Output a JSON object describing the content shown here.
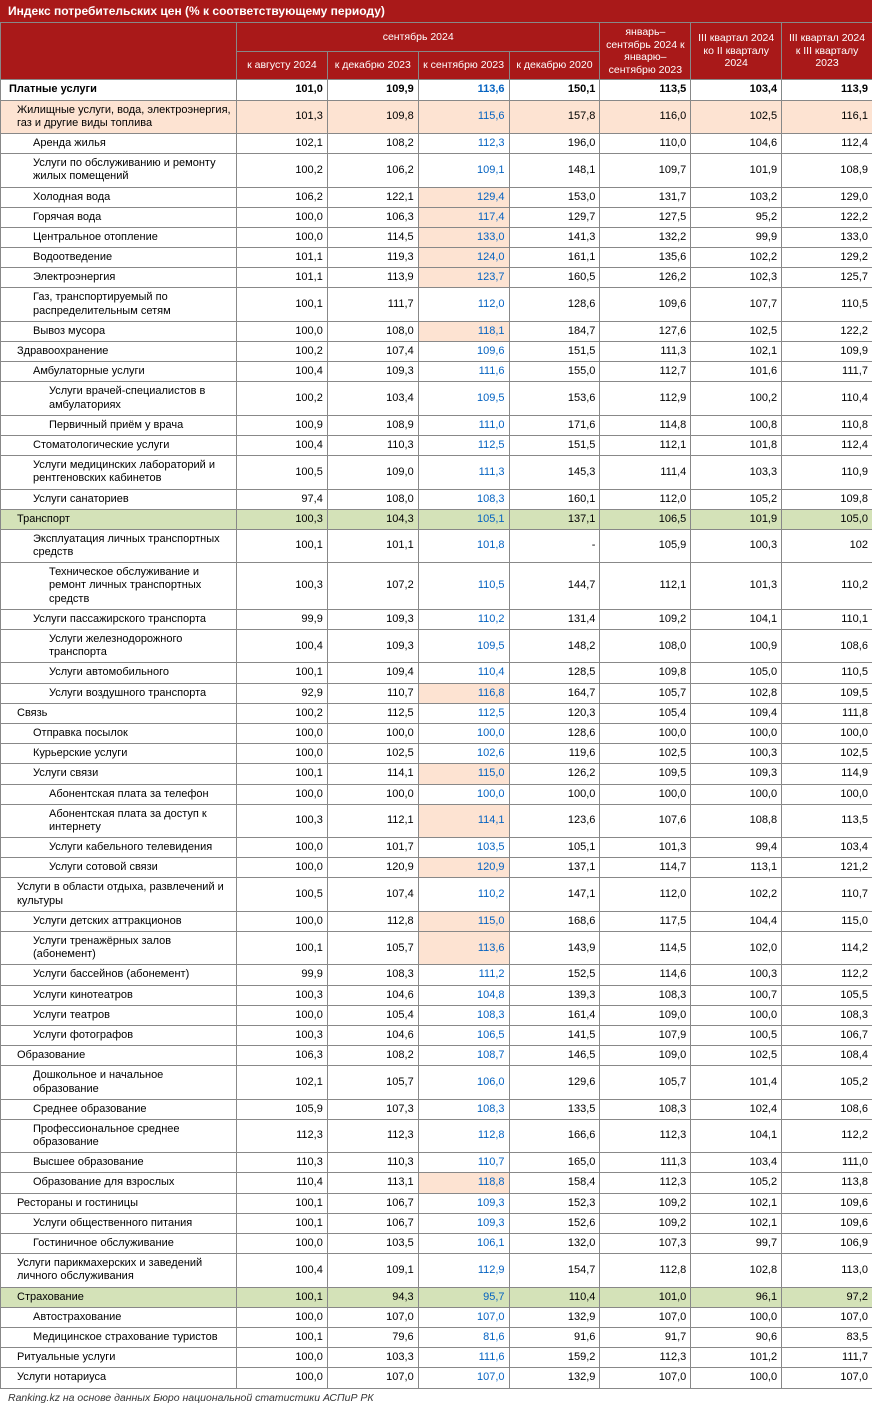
{
  "title": "Индекс потребительских цен (% к соответствующему периоду)",
  "header_top": {
    "sept2024": "сентябрь 2024",
    "jan_sept": "январь–сентябрь 2024 к январю–сентябрю 2023",
    "q3_q2": "III квартал 2024 ко II кварталу 2024",
    "q3_q3": "III квартал 2024 к III кварталу 2023"
  },
  "header_sub": {
    "aug2024": "к августу 2024",
    "dec2023": "к декабрю 2023",
    "sept2023": "к сентябрю 2023",
    "dec2020": "к декабрю 2020"
  },
  "colors": {
    "header_bg": "#a91919",
    "row_plain": "#ffffff",
    "row_orange": "#fde3d2",
    "row_orange_light": "#fdf1e8",
    "row_green": "#d4e2b8",
    "cell_orange": "#fde3d2",
    "link_blue": "#0563c1"
  },
  "footer": "Ranking.kz на основе данных Бюро национальной статистики АСПиР РК",
  "rows": [
    {
      "label": "Платные услуги",
      "indent": 0,
      "bold": true,
      "bg": "plain",
      "v": [
        "101,0",
        "109,9",
        "113,6",
        "150,1",
        "113,5",
        "103,4",
        "113,9"
      ],
      "c3blue": true,
      "c3hl": false
    },
    {
      "label": "Жилищные услуги, вода, электроэнергия, газ и другие виды топлива",
      "indent": 1,
      "bg": "orange",
      "v": [
        "101,3",
        "109,8",
        "115,6",
        "157,8",
        "116,0",
        "102,5",
        "116,1"
      ],
      "c3blue": true,
      "c3hl": false
    },
    {
      "label": "Аренда жилья",
      "indent": 2,
      "bg": "plain",
      "v": [
        "102,1",
        "108,2",
        "112,3",
        "196,0",
        "110,0",
        "104,6",
        "112,4"
      ],
      "c3blue": true,
      "c3hl": false
    },
    {
      "label": "Услуги по обслуживанию и ремонту жилых помещений",
      "indent": 2,
      "bg": "plain",
      "v": [
        "100,2",
        "106,2",
        "109,1",
        "148,1",
        "109,7",
        "101,9",
        "108,9"
      ],
      "c3blue": true,
      "c3hl": false
    },
    {
      "label": "Холодная вода",
      "indent": 2,
      "bg": "plain",
      "v": [
        "106,2",
        "122,1",
        "129,4",
        "153,0",
        "131,7",
        "103,2",
        "129,0"
      ],
      "c3blue": true,
      "c3hl": true
    },
    {
      "label": "Горячая вода",
      "indent": 2,
      "bg": "plain",
      "v": [
        "100,0",
        "106,3",
        "117,4",
        "129,7",
        "127,5",
        "95,2",
        "122,2"
      ],
      "c3blue": true,
      "c3hl": true
    },
    {
      "label": "Центральное отопление",
      "indent": 2,
      "bg": "plain",
      "v": [
        "100,0",
        "114,5",
        "133,0",
        "141,3",
        "132,2",
        "99,9",
        "133,0"
      ],
      "c3blue": true,
      "c3hl": true
    },
    {
      "label": "Водоотведение",
      "indent": 2,
      "bg": "plain",
      "v": [
        "101,1",
        "119,3",
        "124,0",
        "161,1",
        "135,6",
        "102,2",
        "129,2"
      ],
      "c3blue": true,
      "c3hl": true
    },
    {
      "label": "Электроэнергия",
      "indent": 2,
      "bg": "plain",
      "v": [
        "101,1",
        "113,9",
        "123,7",
        "160,5",
        "126,2",
        "102,3",
        "125,7"
      ],
      "c3blue": true,
      "c3hl": true
    },
    {
      "label": "Газ, транспортируемый по распределительным сетям",
      "indent": 2,
      "bg": "plain",
      "v": [
        "100,1",
        "111,7",
        "112,0",
        "128,6",
        "109,6",
        "107,7",
        "110,5"
      ],
      "c3blue": true,
      "c3hl": false
    },
    {
      "label": "Вывоз мусора",
      "indent": 2,
      "bg": "plain",
      "v": [
        "100,0",
        "108,0",
        "118,1",
        "184,7",
        "127,6",
        "102,5",
        "122,2"
      ],
      "c3blue": true,
      "c3hl": true
    },
    {
      "label": "Здравоохранение",
      "indent": 1,
      "bg": "plain",
      "v": [
        "100,2",
        "107,4",
        "109,6",
        "151,5",
        "111,3",
        "102,1",
        "109,9"
      ],
      "c3blue": true,
      "c3hl": false
    },
    {
      "label": "Амбулаторные услуги",
      "indent": 2,
      "bg": "plain",
      "v": [
        "100,4",
        "109,3",
        "111,6",
        "155,0",
        "112,7",
        "101,6",
        "111,7"
      ],
      "c3blue": true,
      "c3hl": false
    },
    {
      "label": "Услуги врачей-специалистов в амбулаториях",
      "indent": 3,
      "bg": "plain",
      "v": [
        "100,2",
        "103,4",
        "109,5",
        "153,6",
        "112,9",
        "100,2",
        "110,4"
      ],
      "c3blue": true,
      "c3hl": false
    },
    {
      "label": "Первичный приём у врача",
      "indent": 3,
      "bg": "plain",
      "v": [
        "100,9",
        "108,9",
        "111,0",
        "171,6",
        "114,8",
        "100,8",
        "110,8"
      ],
      "c3blue": true,
      "c3hl": false
    },
    {
      "label": "Стоматологические услуги",
      "indent": 2,
      "bg": "plain",
      "v": [
        "100,4",
        "110,3",
        "112,5",
        "151,5",
        "112,1",
        "101,8",
        "112,4"
      ],
      "c3blue": true,
      "c3hl": false
    },
    {
      "label": "Услуги медицинских лабораторий и рентгеновских кабинетов",
      "indent": 2,
      "bg": "plain",
      "v": [
        "100,5",
        "109,0",
        "111,3",
        "145,3",
        "111,4",
        "103,3",
        "110,9"
      ],
      "c3blue": true,
      "c3hl": false
    },
    {
      "label": "Услуги санаториев",
      "indent": 2,
      "bg": "plain",
      "v": [
        "97,4",
        "108,0",
        "108,3",
        "160,1",
        "112,0",
        "105,2",
        "109,8"
      ],
      "c3blue": true,
      "c3hl": false
    },
    {
      "label": "Транспорт",
      "indent": 1,
      "bg": "green",
      "v": [
        "100,3",
        "104,3",
        "105,1",
        "137,1",
        "106,5",
        "101,9",
        "105,0"
      ],
      "c3blue": true,
      "c3hl": false
    },
    {
      "label": "Эксплуатация личных транспортных средств",
      "indent": 2,
      "bg": "plain",
      "v": [
        "100,1",
        "101,1",
        "101,8",
        "-",
        "105,9",
        "100,3",
        "102"
      ],
      "c3blue": true,
      "c3hl": false
    },
    {
      "label": "Техническое обслуживание и ремонт личных транспортных средств",
      "indent": 3,
      "bg": "plain",
      "v": [
        "100,3",
        "107,2",
        "110,5",
        "144,7",
        "112,1",
        "101,3",
        "110,2"
      ],
      "c3blue": true,
      "c3hl": false
    },
    {
      "label": "Услуги пассажирского транспорта",
      "indent": 2,
      "bg": "plain",
      "v": [
        "99,9",
        "109,3",
        "110,2",
        "131,4",
        "109,2",
        "104,1",
        "110,1"
      ],
      "c3blue": true,
      "c3hl": false
    },
    {
      "label": "Услуги железнодорожного транспорта",
      "indent": 3,
      "bg": "plain",
      "v": [
        "100,4",
        "109,3",
        "109,5",
        "148,2",
        "108,0",
        "100,9",
        "108,6"
      ],
      "c3blue": true,
      "c3hl": false
    },
    {
      "label": "Услуги автомобильного",
      "indent": 3,
      "bg": "plain",
      "v": [
        "100,1",
        "109,4",
        "110,4",
        "128,5",
        "109,8",
        "105,0",
        "110,5"
      ],
      "c3blue": true,
      "c3hl": false
    },
    {
      "label": "Услуги воздушного транспорта",
      "indent": 3,
      "bg": "plain",
      "v": [
        "92,9",
        "110,7",
        "116,8",
        "164,7",
        "105,7",
        "102,8",
        "109,5"
      ],
      "c3blue": true,
      "c3hl": true
    },
    {
      "label": "Связь",
      "indent": 1,
      "bg": "plain",
      "v": [
        "100,2",
        "112,5",
        "112,5",
        "120,3",
        "105,4",
        "109,4",
        "111,8"
      ],
      "c3blue": true,
      "c3hl": false
    },
    {
      "label": "Отправка посылок",
      "indent": 2,
      "bg": "plain",
      "v": [
        "100,0",
        "100,0",
        "100,0",
        "128,6",
        "100,0",
        "100,0",
        "100,0"
      ],
      "c3blue": true,
      "c3hl": false
    },
    {
      "label": "Курьерские услуги",
      "indent": 2,
      "bg": "plain",
      "v": [
        "100,0",
        "102,5",
        "102,6",
        "119,6",
        "102,5",
        "100,3",
        "102,5"
      ],
      "c3blue": true,
      "c3hl": false
    },
    {
      "label": "Услуги связи",
      "indent": 2,
      "bg": "plain",
      "v": [
        "100,1",
        "114,1",
        "115,0",
        "126,2",
        "109,5",
        "109,3",
        "114,9"
      ],
      "c3blue": true,
      "c3hl": true
    },
    {
      "label": "Абонентская плата за телефон",
      "indent": 3,
      "bg": "plain",
      "v": [
        "100,0",
        "100,0",
        "100,0",
        "100,0",
        "100,0",
        "100,0",
        "100,0"
      ],
      "c3blue": true,
      "c3hl": false
    },
    {
      "label": "Абонентская плата за доступ к интернету",
      "indent": 3,
      "bg": "plain",
      "v": [
        "100,3",
        "112,1",
        "114,1",
        "123,6",
        "107,6",
        "108,8",
        "113,5"
      ],
      "c3blue": true,
      "c3hl": true
    },
    {
      "label": "Услуги кабельного телевидения",
      "indent": 3,
      "bg": "plain",
      "v": [
        "100,0",
        "101,7",
        "103,5",
        "105,1",
        "101,3",
        "99,4",
        "103,4"
      ],
      "c3blue": true,
      "c3hl": false
    },
    {
      "label": "Услуги сотовой связи",
      "indent": 3,
      "bg": "plain",
      "v": [
        "100,0",
        "120,9",
        "120,9",
        "137,1",
        "114,7",
        "113,1",
        "121,2"
      ],
      "c3blue": true,
      "c3hl": true
    },
    {
      "label": "Услуги в области отдыха, развлечений и культуры",
      "indent": 1,
      "bg": "plain",
      "v": [
        "100,5",
        "107,4",
        "110,2",
        "147,1",
        "112,0",
        "102,2",
        "110,7"
      ],
      "c3blue": true,
      "c3hl": false
    },
    {
      "label": "Услуги детских аттракционов",
      "indent": 2,
      "bg": "plain",
      "v": [
        "100,0",
        "112,8",
        "115,0",
        "168,6",
        "117,5",
        "104,4",
        "115,0"
      ],
      "c3blue": true,
      "c3hl": true
    },
    {
      "label": "Услуги тренажёрных залов (абонемент)",
      "indent": 2,
      "bg": "plain",
      "v": [
        "100,1",
        "105,7",
        "113,6",
        "143,9",
        "114,5",
        "102,0",
        "114,2"
      ],
      "c3blue": true,
      "c3hl": true
    },
    {
      "label": "Услуги бассейнов (абонемент)",
      "indent": 2,
      "bg": "plain",
      "v": [
        "99,9",
        "108,3",
        "111,2",
        "152,5",
        "114,6",
        "100,3",
        "112,2"
      ],
      "c3blue": true,
      "c3hl": false
    },
    {
      "label": "Услуги кинотеатров",
      "indent": 2,
      "bg": "plain",
      "v": [
        "100,3",
        "104,6",
        "104,8",
        "139,3",
        "108,3",
        "100,7",
        "105,5"
      ],
      "c3blue": true,
      "c3hl": false
    },
    {
      "label": "Услуги театров",
      "indent": 2,
      "bg": "plain",
      "v": [
        "100,0",
        "105,4",
        "108,3",
        "161,4",
        "109,0",
        "100,0",
        "108,3"
      ],
      "c3blue": true,
      "c3hl": false
    },
    {
      "label": "Услуги фотографов",
      "indent": 2,
      "bg": "plain",
      "v": [
        "100,3",
        "104,6",
        "106,5",
        "141,5",
        "107,9",
        "100,5",
        "106,7"
      ],
      "c3blue": true,
      "c3hl": false
    },
    {
      "label": "Образование",
      "indent": 1,
      "bg": "plain",
      "v": [
        "106,3",
        "108,2",
        "108,7",
        "146,5",
        "109,0",
        "102,5",
        "108,4"
      ],
      "c3blue": true,
      "c3hl": false
    },
    {
      "label": "Дошкольное и начальное образование",
      "indent": 2,
      "bg": "plain",
      "v": [
        "102,1",
        "105,7",
        "106,0",
        "129,6",
        "105,7",
        "101,4",
        "105,2"
      ],
      "c3blue": true,
      "c3hl": false
    },
    {
      "label": "Среднее образование",
      "indent": 2,
      "bg": "plain",
      "v": [
        "105,9",
        "107,3",
        "108,3",
        "133,5",
        "108,3",
        "102,4",
        "108,6"
      ],
      "c3blue": true,
      "c3hl": false
    },
    {
      "label": "Профессиональное среднее образование",
      "indent": 2,
      "bg": "plain",
      "v": [
        "112,3",
        "112,3",
        "112,8",
        "166,6",
        "112,3",
        "104,1",
        "112,2"
      ],
      "c3blue": true,
      "c3hl": false
    },
    {
      "label": "Высшее образование",
      "indent": 2,
      "bg": "plain",
      "v": [
        "110,3",
        "110,3",
        "110,7",
        "165,0",
        "111,3",
        "103,4",
        "111,0"
      ],
      "c3blue": true,
      "c3hl": false
    },
    {
      "label": "Образование для взрослых",
      "indent": 2,
      "bg": "plain",
      "v": [
        "110,4",
        "113,1",
        "118,8",
        "158,4",
        "112,3",
        "105,2",
        "113,8"
      ],
      "c3blue": true,
      "c3hl": true
    },
    {
      "label": "Рестораны и гостиницы",
      "indent": 1,
      "bg": "plain",
      "v": [
        "100,1",
        "106,7",
        "109,3",
        "152,3",
        "109,2",
        "102,1",
        "109,6"
      ],
      "c3blue": true,
      "c3hl": false
    },
    {
      "label": "Услуги общественного питания",
      "indent": 2,
      "bg": "plain",
      "v": [
        "100,1",
        "106,7",
        "109,3",
        "152,6",
        "109,2",
        "102,1",
        "109,6"
      ],
      "c3blue": true,
      "c3hl": false
    },
    {
      "label": "Гостиничное обслуживание",
      "indent": 2,
      "bg": "plain",
      "v": [
        "100,0",
        "103,5",
        "106,1",
        "132,0",
        "107,3",
        "99,7",
        "106,9"
      ],
      "c3blue": true,
      "c3hl": false
    },
    {
      "label": "Услуги парикмахерских и заведений личного обслуживания",
      "indent": 1,
      "bg": "plain",
      "v": [
        "100,4",
        "109,1",
        "112,9",
        "154,7",
        "112,8",
        "102,8",
        "113,0"
      ],
      "c3blue": true,
      "c3hl": false
    },
    {
      "label": "Страхование",
      "indent": 1,
      "bg": "green",
      "v": [
        "100,1",
        "94,3",
        "95,7",
        "110,4",
        "101,0",
        "96,1",
        "97,2"
      ],
      "c3blue": true,
      "c3hl": false
    },
    {
      "label": "Автострахование",
      "indent": 2,
      "bg": "plain",
      "v": [
        "100,0",
        "107,0",
        "107,0",
        "132,9",
        "107,0",
        "100,0",
        "107,0"
      ],
      "c3blue": true,
      "c3hl": false
    },
    {
      "label": "Медицинское страхование туристов",
      "indent": 2,
      "bg": "plain",
      "v": [
        "100,1",
        "79,6",
        "81,6",
        "91,6",
        "91,7",
        "90,6",
        "83,5"
      ],
      "c3blue": true,
      "c3hl": false
    },
    {
      "label": "Ритуальные услуги",
      "indent": 1,
      "bg": "plain",
      "v": [
        "100,0",
        "103,3",
        "111,6",
        "159,2",
        "112,3",
        "101,2",
        "111,7"
      ],
      "c3blue": true,
      "c3hl": false
    },
    {
      "label": "Услуги нотариуса",
      "indent": 1,
      "bg": "plain",
      "v": [
        "100,0",
        "107,0",
        "107,0",
        "132,9",
        "107,0",
        "100,0",
        "107,0"
      ],
      "c3blue": true,
      "c3hl": false
    }
  ]
}
